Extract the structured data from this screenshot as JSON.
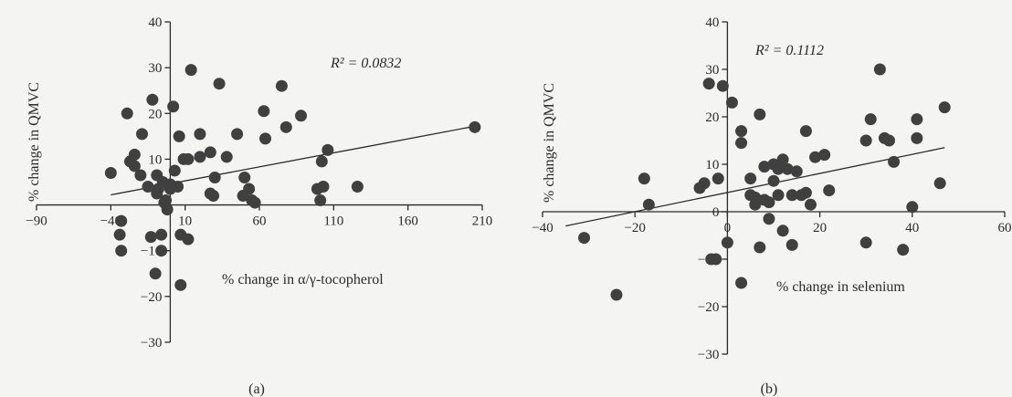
{
  "chart_data": [
    {
      "type": "scatter",
      "panel_label": "(a)",
      "xlabel": "% change in α/γ-tocopherol",
      "ylabel": "% change in QMVC",
      "annotation": "R² = 0.0832",
      "xlim": [
        -90,
        210
      ],
      "ylim": [
        -30,
        40
      ],
      "xticks": [
        -90,
        -40,
        10,
        60,
        110,
        160,
        210
      ],
      "yticks": [
        -30,
        -20,
        -10,
        10,
        20,
        30,
        40
      ],
      "grid": false,
      "trendline": [
        [
          -40,
          2.2
        ],
        [
          205,
          17.2
        ]
      ],
      "points": [
        [
          -40,
          7
        ],
        [
          -33,
          -3.5
        ],
        [
          -34,
          -6.5
        ],
        [
          -33,
          -10
        ],
        [
          -29,
          20
        ],
        [
          -27,
          9.5
        ],
        [
          -24,
          11
        ],
        [
          -24,
          8.5
        ],
        [
          -20,
          6.5
        ],
        [
          -19,
          15.5
        ],
        [
          -15,
          4
        ],
        [
          -13,
          -7
        ],
        [
          -12,
          23
        ],
        [
          -10,
          -15
        ],
        [
          -9,
          2.5
        ],
        [
          -9,
          6.5
        ],
        [
          -8,
          3.5
        ],
        [
          -6,
          -6.5
        ],
        [
          -6,
          -10
        ],
        [
          -5,
          5
        ],
        [
          -4,
          0.5
        ],
        [
          -3,
          1
        ],
        [
          -2,
          -1
        ],
        [
          0,
          4.5
        ],
        [
          0,
          3.5
        ],
        [
          2,
          21.5
        ],
        [
          3,
          7.5
        ],
        [
          5,
          4
        ],
        [
          6,
          15
        ],
        [
          7,
          -6.5
        ],
        [
          7,
          -17.5
        ],
        [
          9,
          10
        ],
        [
          12,
          -7.5
        ],
        [
          12,
          10
        ],
        [
          14,
          29.5
        ],
        [
          20,
          10.5
        ],
        [
          20,
          15.5
        ],
        [
          27,
          11.5
        ],
        [
          27,
          2.5
        ],
        [
          29,
          2
        ],
        [
          30,
          6
        ],
        [
          33,
          26.5
        ],
        [
          38,
          10.5
        ],
        [
          45,
          15.5
        ],
        [
          49,
          2
        ],
        [
          50,
          6
        ],
        [
          53,
          3.5
        ],
        [
          55,
          1
        ],
        [
          57,
          0.5
        ],
        [
          63,
          20.5
        ],
        [
          64,
          14.5
        ],
        [
          75,
          26
        ],
        [
          78,
          17
        ],
        [
          88,
          19.5
        ],
        [
          99,
          3.5
        ],
        [
          101,
          1
        ],
        [
          102,
          9.5
        ],
        [
          103,
          4
        ],
        [
          106,
          12
        ],
        [
          126,
          4
        ],
        [
          205,
          17
        ]
      ]
    },
    {
      "type": "scatter",
      "panel_label": "(b)",
      "xlabel": "% change in selenium",
      "ylabel": "% change in QMVC",
      "annotation": "R² = 0.1112",
      "xlim": [
        -40,
        60
      ],
      "ylim": [
        -30,
        40
      ],
      "xticks": [
        -40,
        -20,
        0,
        20,
        40,
        60
      ],
      "yticks": [
        -30,
        -20,
        -10,
        0,
        10,
        20,
        30,
        40
      ],
      "grid": false,
      "trendline": [
        [
          -35,
          -3
        ],
        [
          47,
          13.5
        ]
      ],
      "points": [
        [
          -31,
          -5.5
        ],
        [
          -24,
          -17.5
        ],
        [
          -18,
          7
        ],
        [
          -17,
          1.5
        ],
        [
          -6,
          5
        ],
        [
          -5,
          6
        ],
        [
          -4,
          27
        ],
        [
          -3.5,
          -10
        ],
        [
          -2.5,
          -10
        ],
        [
          -2,
          7
        ],
        [
          -1,
          26.5
        ],
        [
          0,
          -6.5
        ],
        [
          1,
          23
        ],
        [
          3,
          -15
        ],
        [
          3,
          17
        ],
        [
          3,
          14.5
        ],
        [
          5,
          7
        ],
        [
          5,
          3.5
        ],
        [
          6,
          1.5
        ],
        [
          6,
          3
        ],
        [
          7,
          20.5
        ],
        [
          7,
          -7.5
        ],
        [
          8,
          2.5
        ],
        [
          8,
          9.5
        ],
        [
          9,
          2
        ],
        [
          9,
          -1.5
        ],
        [
          10,
          10
        ],
        [
          10,
          6.5
        ],
        [
          11,
          9
        ],
        [
          11,
          3.5
        ],
        [
          12,
          -4
        ],
        [
          12,
          11
        ],
        [
          13,
          9
        ],
        [
          14,
          3.5
        ],
        [
          14,
          -7
        ],
        [
          15,
          8.5
        ],
        [
          16,
          3.5
        ],
        [
          17,
          17
        ],
        [
          17,
          4
        ],
        [
          18,
          1.5
        ],
        [
          19,
          11.5
        ],
        [
          21,
          12
        ],
        [
          22,
          4.5
        ],
        [
          30,
          -6.5
        ],
        [
          30,
          15
        ],
        [
          31,
          19.5
        ],
        [
          33,
          30
        ],
        [
          34,
          15.5
        ],
        [
          35,
          15
        ],
        [
          36,
          10.5
        ],
        [
          38,
          -8
        ],
        [
          41,
          19.5
        ],
        [
          41,
          15.5
        ],
        [
          40,
          1
        ],
        [
          46,
          6
        ],
        [
          47,
          22
        ]
      ]
    }
  ]
}
